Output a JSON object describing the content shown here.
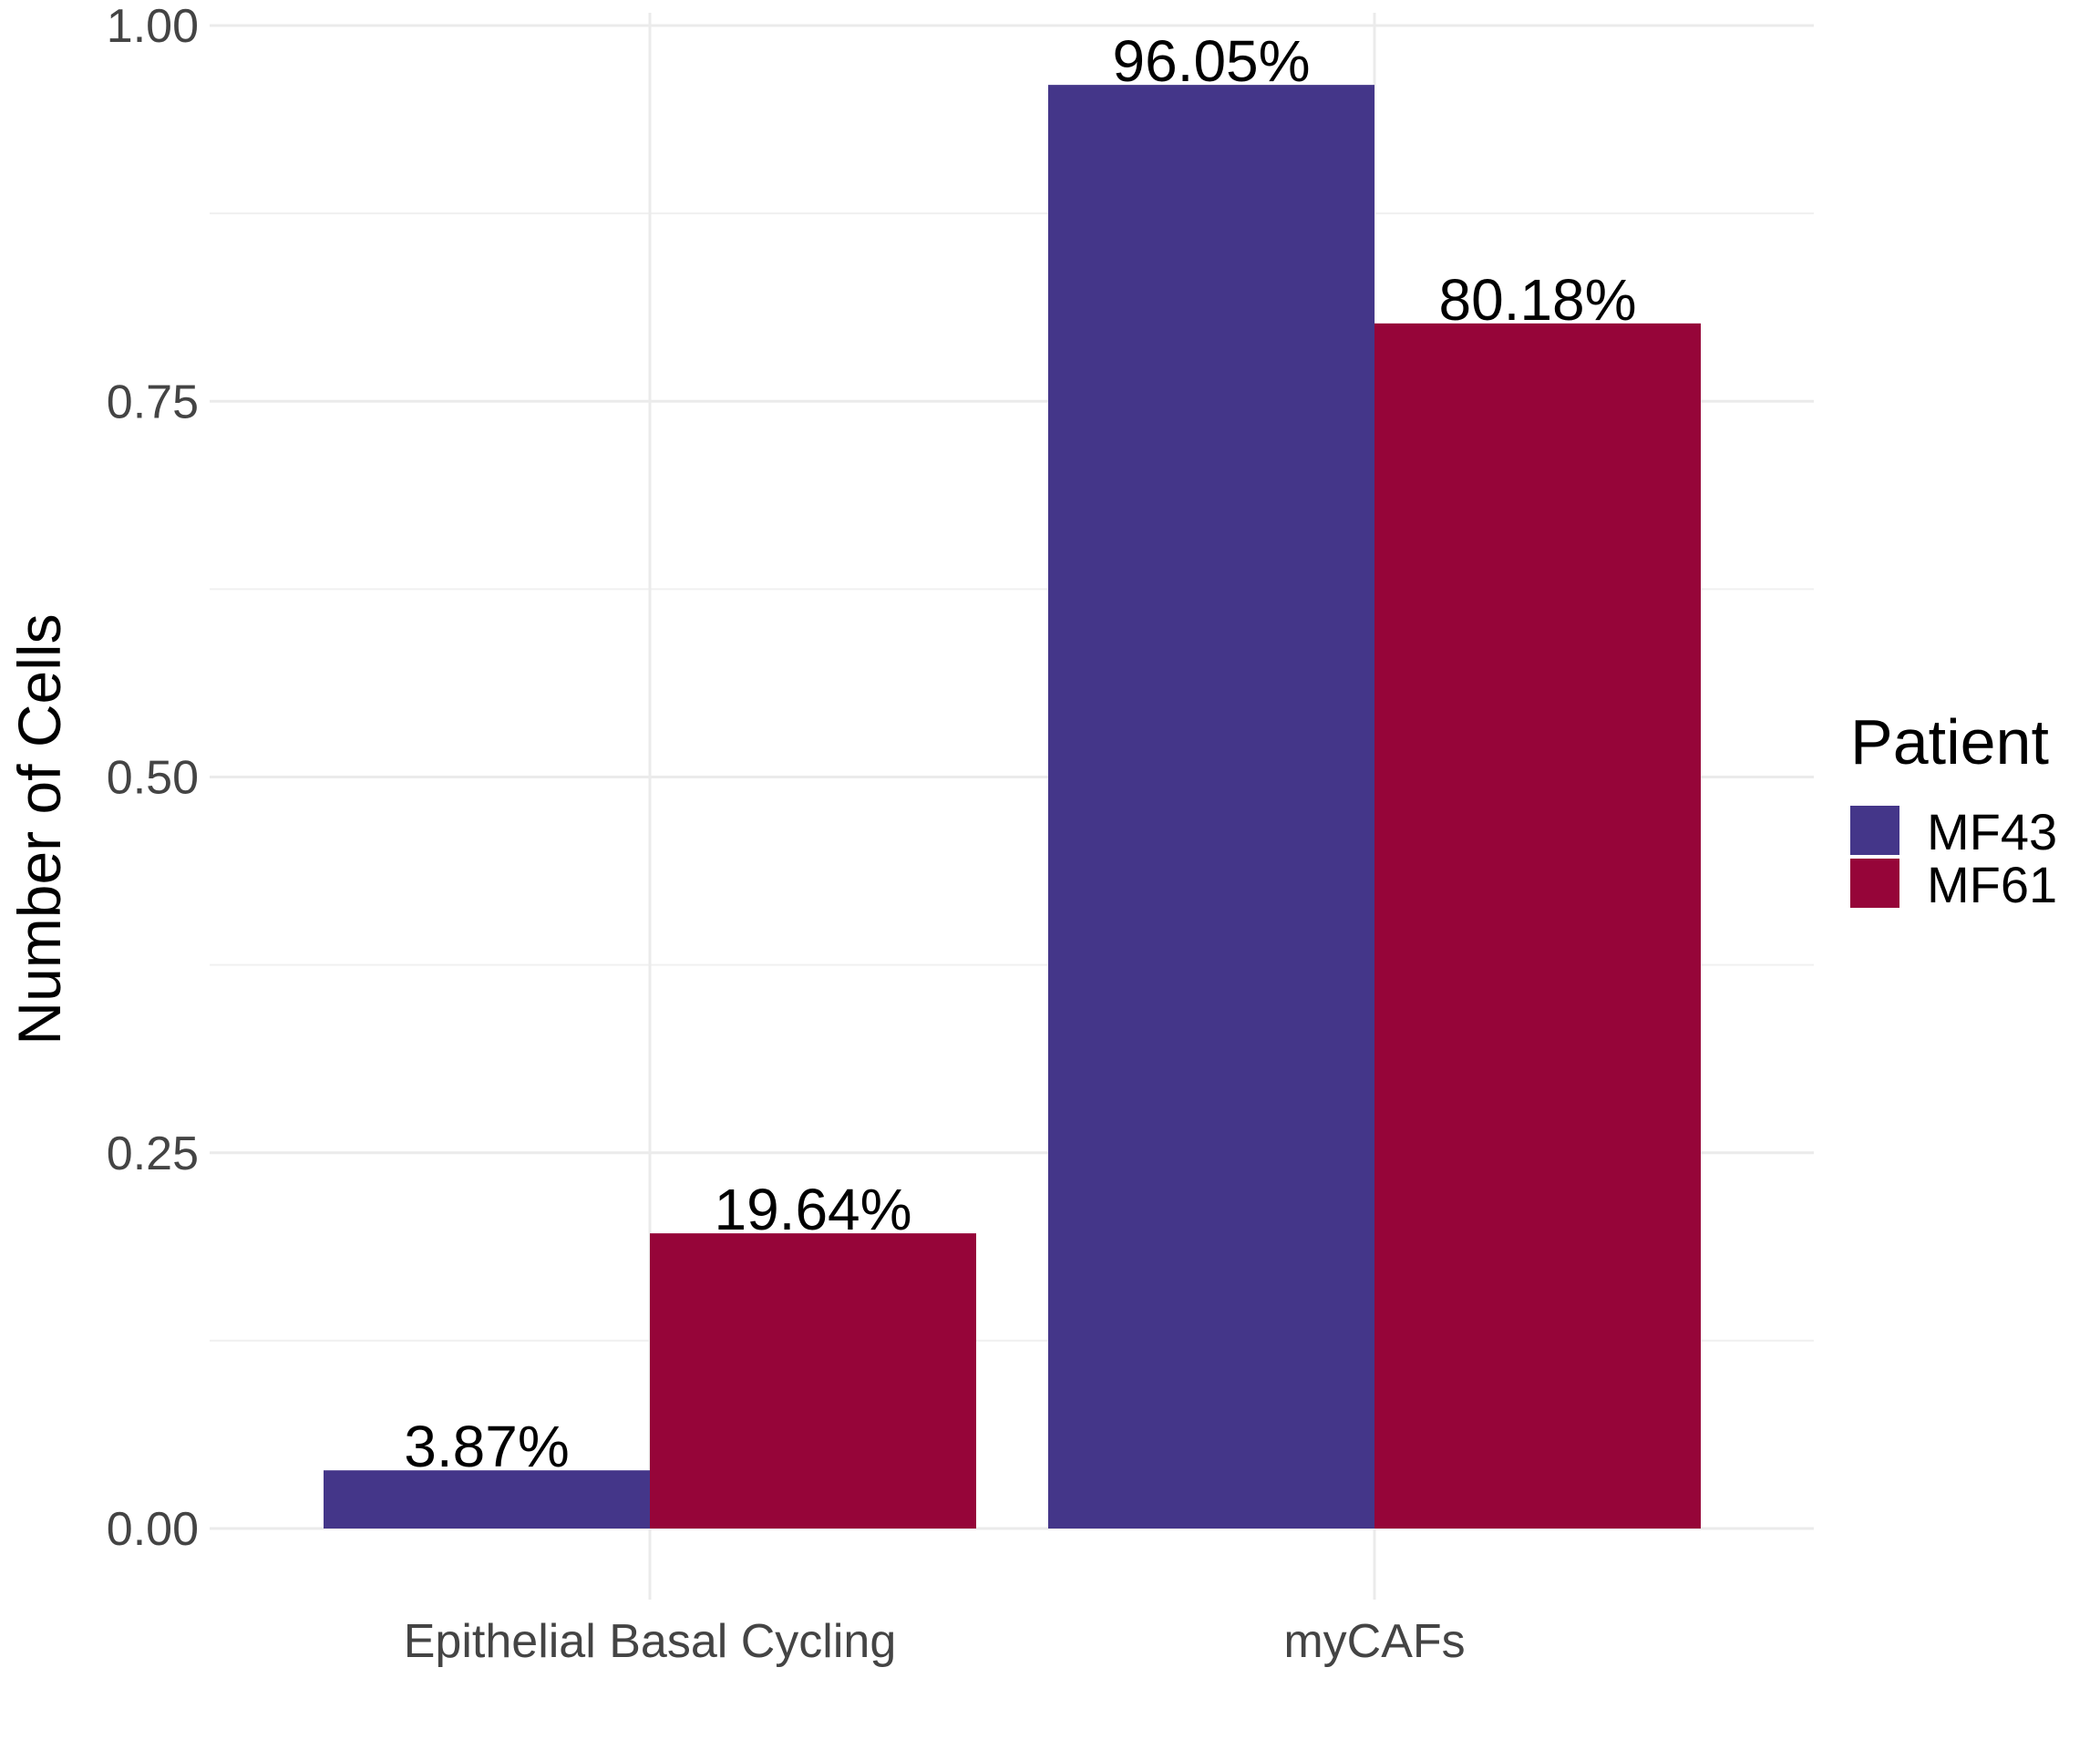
{
  "chart_data": {
    "type": "bar",
    "categories": [
      "Epithelial Basal Cycling",
      "myCAFs"
    ],
    "series": [
      {
        "name": "MF43",
        "values": [
          0.0387,
          0.9605
        ],
        "labels": [
          "3.87%",
          "96.05%"
        ],
        "color": "#443689"
      },
      {
        "name": "MF61",
        "values": [
          0.1964,
          0.8018
        ],
        "labels": [
          "19.64%",
          "80.18%"
        ],
        "color": "#960539"
      }
    ],
    "title": "",
    "xlabel": "",
    "ylabel": "Number of Cells",
    "ylim": [
      0,
      1.0
    ],
    "yticks": [
      0.0,
      0.25,
      0.5,
      0.75,
      1.0
    ],
    "ytick_labels": [
      "0.00",
      "0.25",
      "0.50",
      "0.75",
      "1.00"
    ],
    "grid": true,
    "legend": {
      "title": "Patient",
      "placement": "right"
    }
  }
}
